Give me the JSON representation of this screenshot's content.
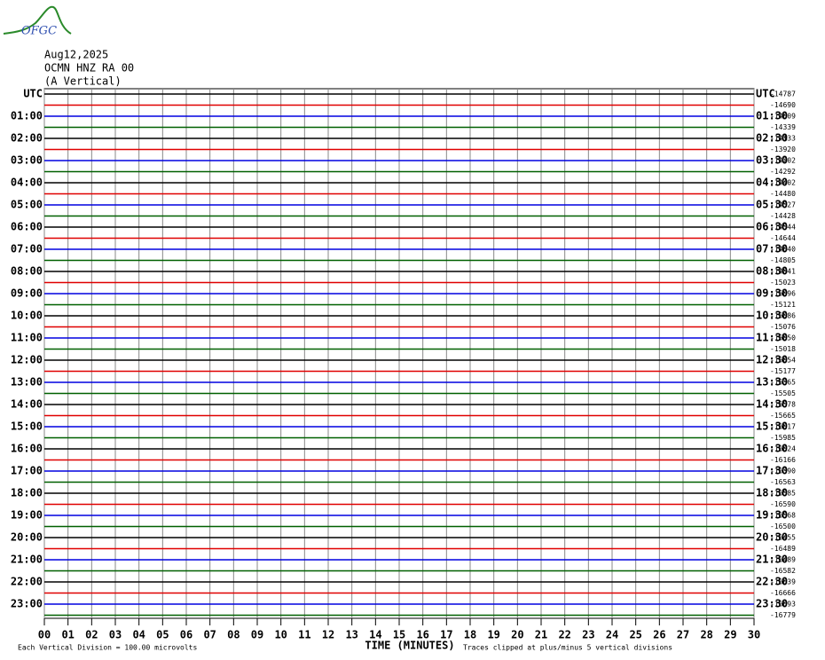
{
  "logo": "OFGC",
  "header": {
    "date": "Aug12,2025",
    "station": "OCMN HNZ RA 00",
    "component": "(A Vertical)"
  },
  "left_labels": [
    "UTC",
    "01:00",
    "02:00",
    "03:00",
    "04:00",
    "05:00",
    "06:00",
    "07:00",
    "08:00",
    "09:00",
    "10:00",
    "11:00",
    "12:00",
    "13:00",
    "14:00",
    "15:00",
    "16:00",
    "17:00",
    "18:00",
    "19:00",
    "20:00",
    "21:00",
    "22:00",
    "23:00"
  ],
  "right_labels": [
    "UTC",
    "01:30",
    "02:30",
    "03:30",
    "04:30",
    "05:30",
    "06:30",
    "07:30",
    "08:30",
    "09:30",
    "10:30",
    "11:30",
    "12:30",
    "13:30",
    "14:30",
    "15:30",
    "16:30",
    "17:30",
    "18:30",
    "19:30",
    "20:30",
    "21:30",
    "22:30",
    "23:30"
  ],
  "trace_offsets": [
    -14787,
    -14690,
    -14609,
    -14339,
    -14133,
    -13920,
    -14202,
    -14292,
    -14402,
    -14480,
    -14527,
    -14428,
    -14544,
    -14644,
    -14640,
    -14805,
    -14841,
    -15023,
    -15096,
    -15121,
    -15086,
    -15076,
    -15050,
    -15018,
    -15054,
    -15177,
    -15365,
    -15505,
    -15578,
    -15665,
    -16017,
    -15985,
    -16024,
    -16166,
    -16390,
    -16563,
    -16585,
    -16590,
    -16568,
    -16500,
    -16455,
    -16489,
    -16489,
    -16582,
    -16639,
    -16666,
    -16693,
    -16779
  ],
  "trace_colors": [
    "#000000",
    "#e00000",
    "#0000e0",
    "#006000"
  ],
  "x_axis": {
    "title": "TIME (MINUTES)",
    "labels": [
      "00",
      "01",
      "02",
      "03",
      "04",
      "05",
      "06",
      "07",
      "08",
      "09",
      "10",
      "11",
      "12",
      "13",
      "14",
      "15",
      "16",
      "17",
      "18",
      "19",
      "20",
      "21",
      "22",
      "23",
      "24",
      "25",
      "26",
      "27",
      "28",
      "29",
      "30"
    ]
  },
  "footer": {
    "scale": "Each Vertical Division =  100.00 microvolts",
    "clip": "Traces clipped at plus/minus 5 vertical divisions"
  }
}
